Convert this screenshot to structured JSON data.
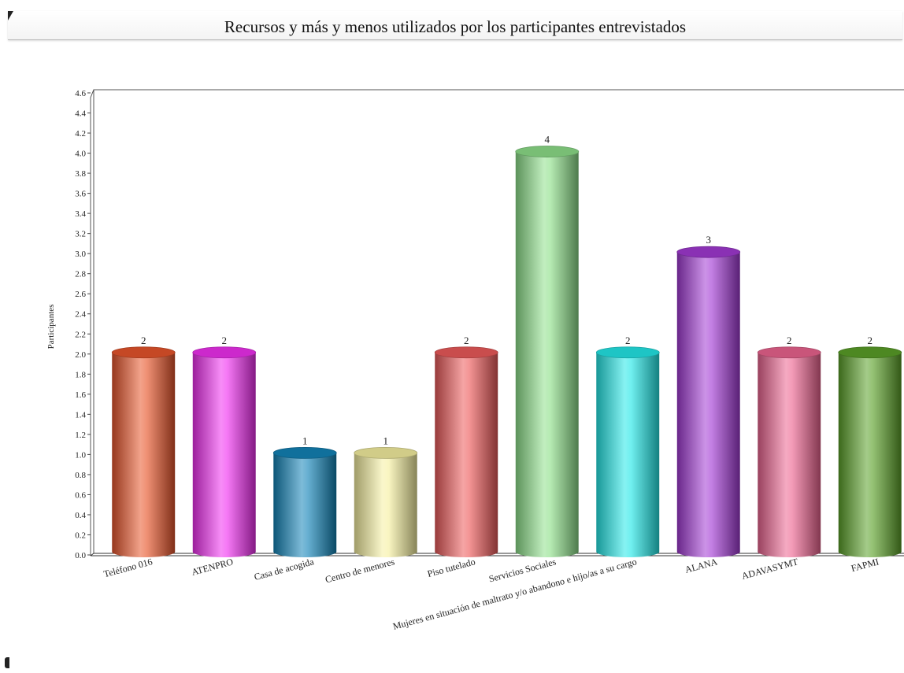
{
  "chart_data": {
    "type": "bar",
    "title": "Recursos y más y menos utilizados por los participantes entrevistados",
    "ylabel": "Participantes",
    "xlabel": "",
    "ylim": [
      0,
      4.6
    ],
    "ytick_step": 0.2,
    "grid": false,
    "categories": [
      "Teléfono 016",
      "ATENPRO",
      "Casa de acogida",
      "Centro de menores",
      "Piso tutelado",
      "Servicios Sociales",
      "Mujeres en situación de maltrato y/o abandono e hijo/as a su cargo",
      "ALANA",
      "ADAVASYMT",
      "FAPMI"
    ],
    "values": [
      2,
      2,
      1,
      1,
      2,
      4,
      2,
      3,
      2,
      2
    ],
    "data_labels": [
      "2",
      "2",
      "1",
      "1",
      "2",
      "4",
      "2",
      "3",
      "2",
      "2"
    ],
    "colors": [
      "#e8552b",
      "#f030f0",
      "#1384b8",
      "#f6f0a0",
      "#ec5a5a",
      "#8ee08a",
      "#23e8e8",
      "#a23ad4",
      "#ec6490",
      "#5aa028"
    ]
  }
}
